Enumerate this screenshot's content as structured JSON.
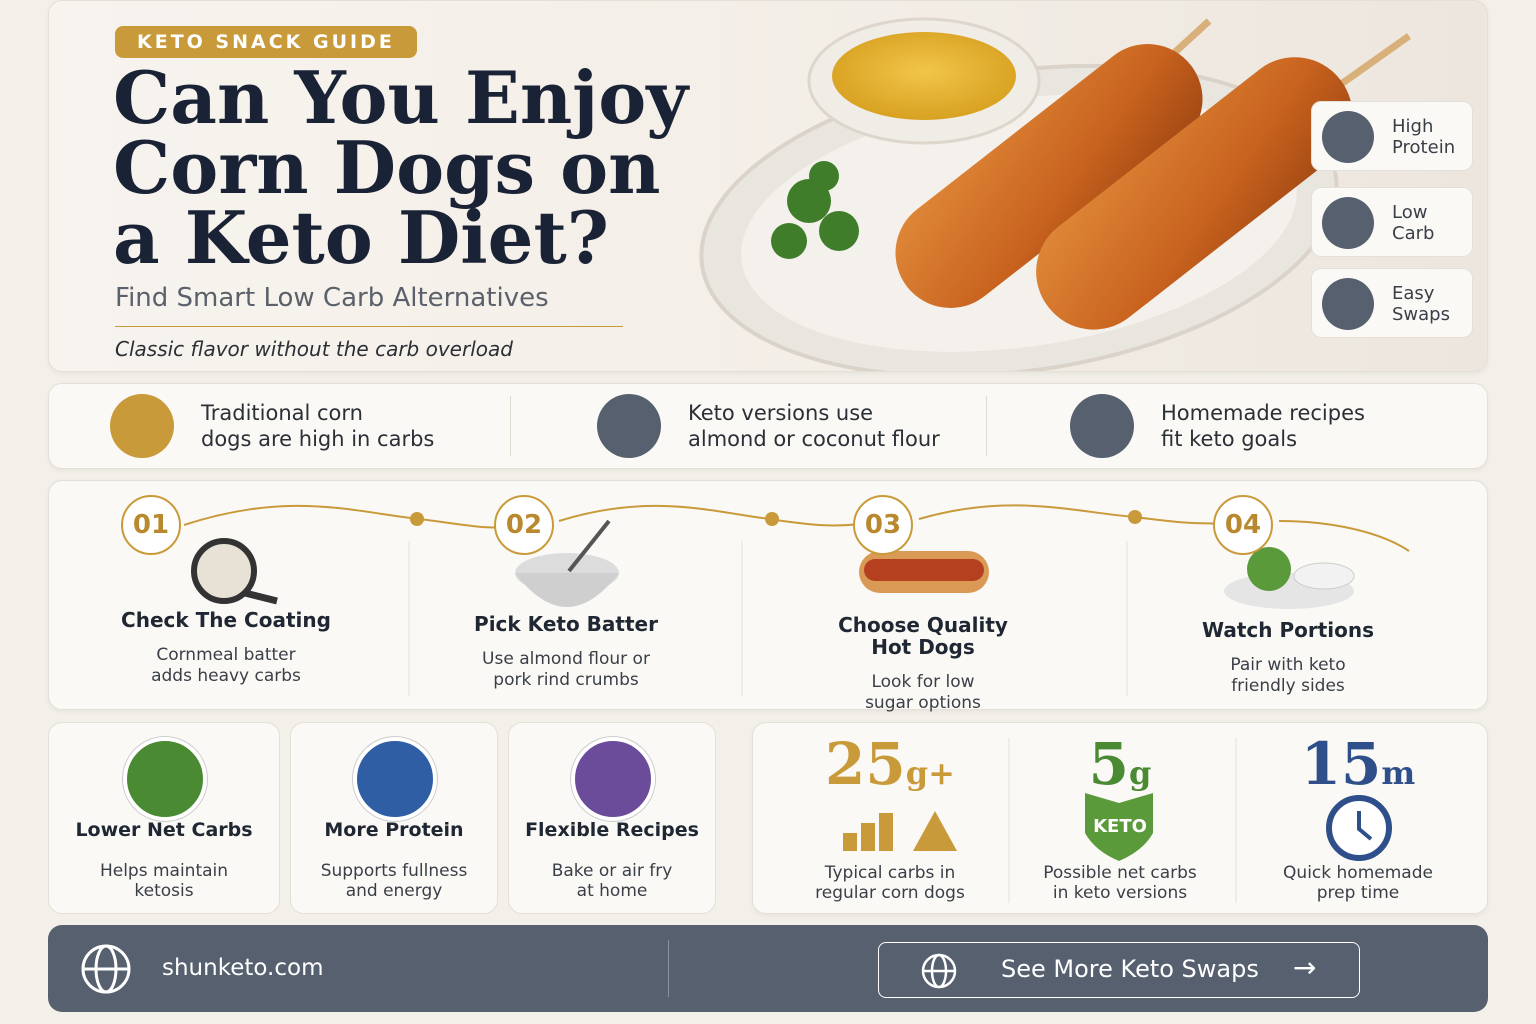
{
  "hero": {
    "badge": "KETO SNACK GUIDE",
    "title": [
      "Can You Enjoy",
      "Corn Dogs on",
      "a Keto Diet?"
    ],
    "subtitle": "Find Smart Low Carb Alternatives",
    "tagline": "Classic flavor without the carb overload",
    "tags": [
      [
        "High",
        "Protein"
      ],
      [
        "Low",
        "Carb"
      ],
      [
        "Easy",
        "Swaps"
      ]
    ]
  },
  "facts": [
    [
      "Traditional corn",
      "dogs are high in carbs"
    ],
    [
      "Keto versions use",
      "almond or coconut flour"
    ],
    [
      "Homemade recipes",
      "fit keto goals"
    ]
  ],
  "steps": [
    {
      "number": "01",
      "title": [
        "Check The Coating"
      ],
      "text": [
        "Cornmeal batter",
        "adds heavy carbs"
      ]
    },
    {
      "number": "02",
      "title": [
        "Pick Keto Batter"
      ],
      "text": [
        "Use almond flour or",
        "pork rind crumbs"
      ]
    },
    {
      "number": "03",
      "title": [
        "Choose Quality",
        "Hot Dogs"
      ],
      "text": [
        "Look for low",
        "sugar options"
      ]
    },
    {
      "number": "04",
      "title": [
        "Watch Portions"
      ],
      "text": [
        "Pair with keto",
        "friendly sides"
      ]
    }
  ],
  "benefits": [
    {
      "title": "Lower Net Carbs",
      "text": [
        "Helps maintain",
        "ketosis"
      ]
    },
    {
      "title": "More Protein",
      "text": [
        "Supports fullness",
        "and energy"
      ]
    },
    {
      "title": "Flexible Recipes",
      "text": [
        "Bake or air fry",
        "at home"
      ]
    }
  ],
  "stats": [
    {
      "value": "25",
      "unit": "g+",
      "icon": "",
      "text": [
        "Typical carbs in",
        "regular corn dogs"
      ]
    },
    {
      "value": "5",
      "unit": "g",
      "icon": "KETO",
      "text": [
        "Possible net carbs",
        "in keto versions"
      ]
    },
    {
      "value": "15",
      "unit": "m",
      "icon": "",
      "text": [
        "Quick homemade",
        "prep time"
      ]
    }
  ],
  "footer": {
    "site": "shunketo.com",
    "button": "See More Keto Swaps"
  }
}
